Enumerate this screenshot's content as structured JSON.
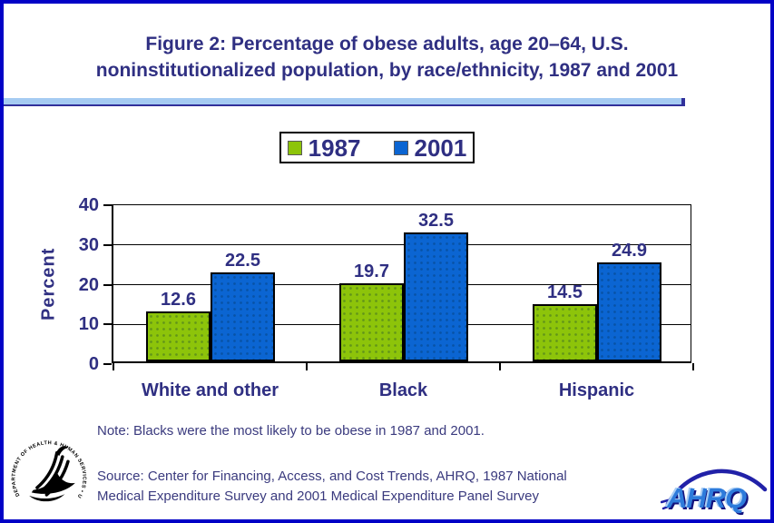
{
  "window": {
    "background": "#FFFFFF",
    "border_color": "#0101C6"
  },
  "title": {
    "lines": [
      "Figure 2: Percentage of obese adults, age 20–64, U.S.",
      "noninstitutionalized population, by race/ethnicity, 1987 and 2001"
    ],
    "color": "#2F2F82"
  },
  "divider": {
    "fill_color": "#A5CBF2",
    "edge_color": "#31319B"
  },
  "note": "Note: Blacks were the most likely to be obese in 1987 and 2001.",
  "source": "Source: Center for Financing, Access, and Cost Trends, AHRQ, 1987 National Medical Expenditure Survey and 2001 Medical Expenditure Panel Survey",
  "logos": {
    "hhs_seal_text": "DEPARTMENT OF HEALTH & HUMAN SERVICES • USA",
    "ahrq_text": "AHRQ"
  },
  "chart_data": {
    "type": "bar",
    "title": "Figure 2: Percentage of obese adults, age 20–64, U.S. noninstitutionalized population, by race/ethnicity, 1987 and 2001",
    "categories": [
      "White and other",
      "Black",
      "Hispanic"
    ],
    "series": [
      {
        "name": "1987",
        "color": "#8DC40A",
        "values": [
          12.6,
          19.7,
          14.5
        ]
      },
      {
        "name": "2001",
        "color": "#0B65D2",
        "values": [
          22.5,
          32.5,
          24.9
        ]
      }
    ],
    "xlabel": "",
    "ylabel": "Percent",
    "ylim": [
      0,
      40
    ],
    "yticks": [
      0,
      10,
      20,
      30,
      40
    ],
    "grid": true,
    "grid_color": "#000000",
    "legend_position": "top-center",
    "data_labels": true,
    "axis_text_color": "#2F2F82"
  }
}
